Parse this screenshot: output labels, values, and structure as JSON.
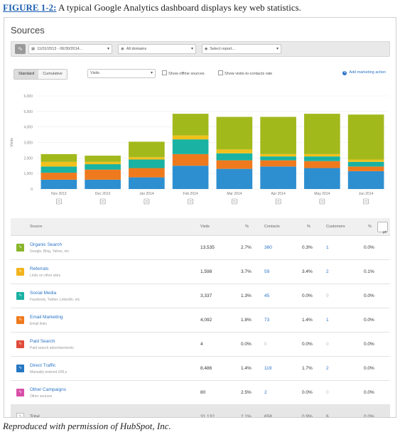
{
  "figure_caption": {
    "label": "FIGURE 1-2:",
    "text": " A typical Google Analytics dashboard displays key web statistics."
  },
  "panel_title": "Sources",
  "filters": {
    "date_range": "11/01/2013 - 06/30/2014...",
    "domains": "All domains",
    "report_placeholder": "Select report..."
  },
  "controls": {
    "standard_label": "Standard",
    "cumulative_label": "Cumulative",
    "metric": "Visits",
    "offline_label": "Show offline sources",
    "visits_to_contacts_label": "Show visits-to-contacts rate",
    "add_action_label": "Add marketing action"
  },
  "colors": {
    "organic": "#2d8fd0",
    "referrals": "#f39c1f",
    "social": "#19b2a3",
    "email": "#ef7a1e",
    "paid": "#e04a3a",
    "direct": "#2577c4",
    "other": "#d84fa8",
    "bar_top": "#a2b91c",
    "yellow": "#f2c01b"
  },
  "chart_data": {
    "type": "bar",
    "stacked": true,
    "categories": [
      "Nov 2013",
      "Dec 2013",
      "Jan 2014",
      "Feb 2014",
      "Mar 2014",
      "Apr 2014",
      "May 2014",
      "Jun 2014"
    ],
    "ylabel": "Visits",
    "ylim": [
      0,
      6000
    ],
    "yticks": [
      "0",
      "1,000",
      "2,000",
      "3,000",
      "4,000",
      "5,000",
      "6,000"
    ],
    "grid": true,
    "series": [
      {
        "color": "#2d8fd0",
        "values": [
          600,
          600,
          750,
          1500,
          1300,
          1450,
          1350,
          1150
        ]
      },
      {
        "color": "#ef7a1e",
        "values": [
          450,
          650,
          600,
          750,
          550,
          400,
          450,
          300
        ]
      },
      {
        "color": "#19b2a3",
        "values": [
          400,
          350,
          550,
          950,
          450,
          250,
          300,
          300
        ]
      },
      {
        "color": "#f2c01b",
        "values": [
          300,
          150,
          150,
          250,
          250,
          150,
          150,
          150
        ]
      },
      {
        "color": "#a2b91c",
        "values": [
          500,
          400,
          1000,
          1400,
          2100,
          2400,
          2600,
          2900
        ]
      }
    ]
  },
  "table": {
    "headers": {
      "source": "Source",
      "visits": "Visits",
      "pct1": "%",
      "contacts": "Contacts",
      "pct2": "%",
      "customers": "Customers",
      "pct3": "%"
    },
    "rows": [
      {
        "name": "Organic Search",
        "sub": "Google, Bing, Yahoo, etc.",
        "color": "#88b52a",
        "visits": "13,535",
        "pct1": "2.7%",
        "contacts": "360",
        "pct2": "0.3%",
        "customers": "1",
        "pct3": "0.0%"
      },
      {
        "name": "Referrals",
        "sub": "Links on other sites",
        "color": "#f2b21b",
        "visits": "1,598",
        "pct1": "3.7%",
        "contacts": "59",
        "pct2": "3.4%",
        "customers": "2",
        "pct3": "0.1%"
      },
      {
        "name": "Social Media",
        "sub": "Facebook, Twitter, LinkedIn, etc.",
        "color": "#19b2a3",
        "visits": "3,337",
        "pct1": "1.3%",
        "contacts": "45",
        "pct2": "0.0%",
        "customers": "0",
        "pct3": "0.0%"
      },
      {
        "name": "Email Marketing",
        "sub": "Email links",
        "color": "#ef7a1e",
        "visits": "4,092",
        "pct1": "1.8%",
        "contacts": "73",
        "pct2": "1.4%",
        "customers": "1",
        "pct3": "0.0%"
      },
      {
        "name": "Paid Search",
        "sub": "Paid search advertisements",
        "color": "#e04a3a",
        "visits": "4",
        "pct1": "0.0%",
        "contacts": "0",
        "pct2": "0.0%",
        "customers": "0",
        "pct3": "0.0%"
      },
      {
        "name": "Direct Traffic",
        "sub": "Manually entered URLs",
        "color": "#2577c4",
        "visits": "8,486",
        "pct1": "1.4%",
        "contacts": "119",
        "pct2": "1.7%",
        "customers": "2",
        "pct3": "0.0%"
      },
      {
        "name": "Other Campaigns",
        "sub": "Other sources",
        "color": "#d84fa8",
        "visits": "80",
        "pct1": "2.5%",
        "contacts": "2",
        "pct2": "0.0%",
        "customers": "0",
        "pct3": "0.0%"
      }
    ],
    "total": {
      "name": "Total",
      "visits": "31,132",
      "pct1": "2.1%",
      "contacts": "658",
      "pct2": "0.9%",
      "customers": "6",
      "pct3": "0.0%"
    }
  },
  "footer": "Reproduced with permission of HubSpot, Inc."
}
